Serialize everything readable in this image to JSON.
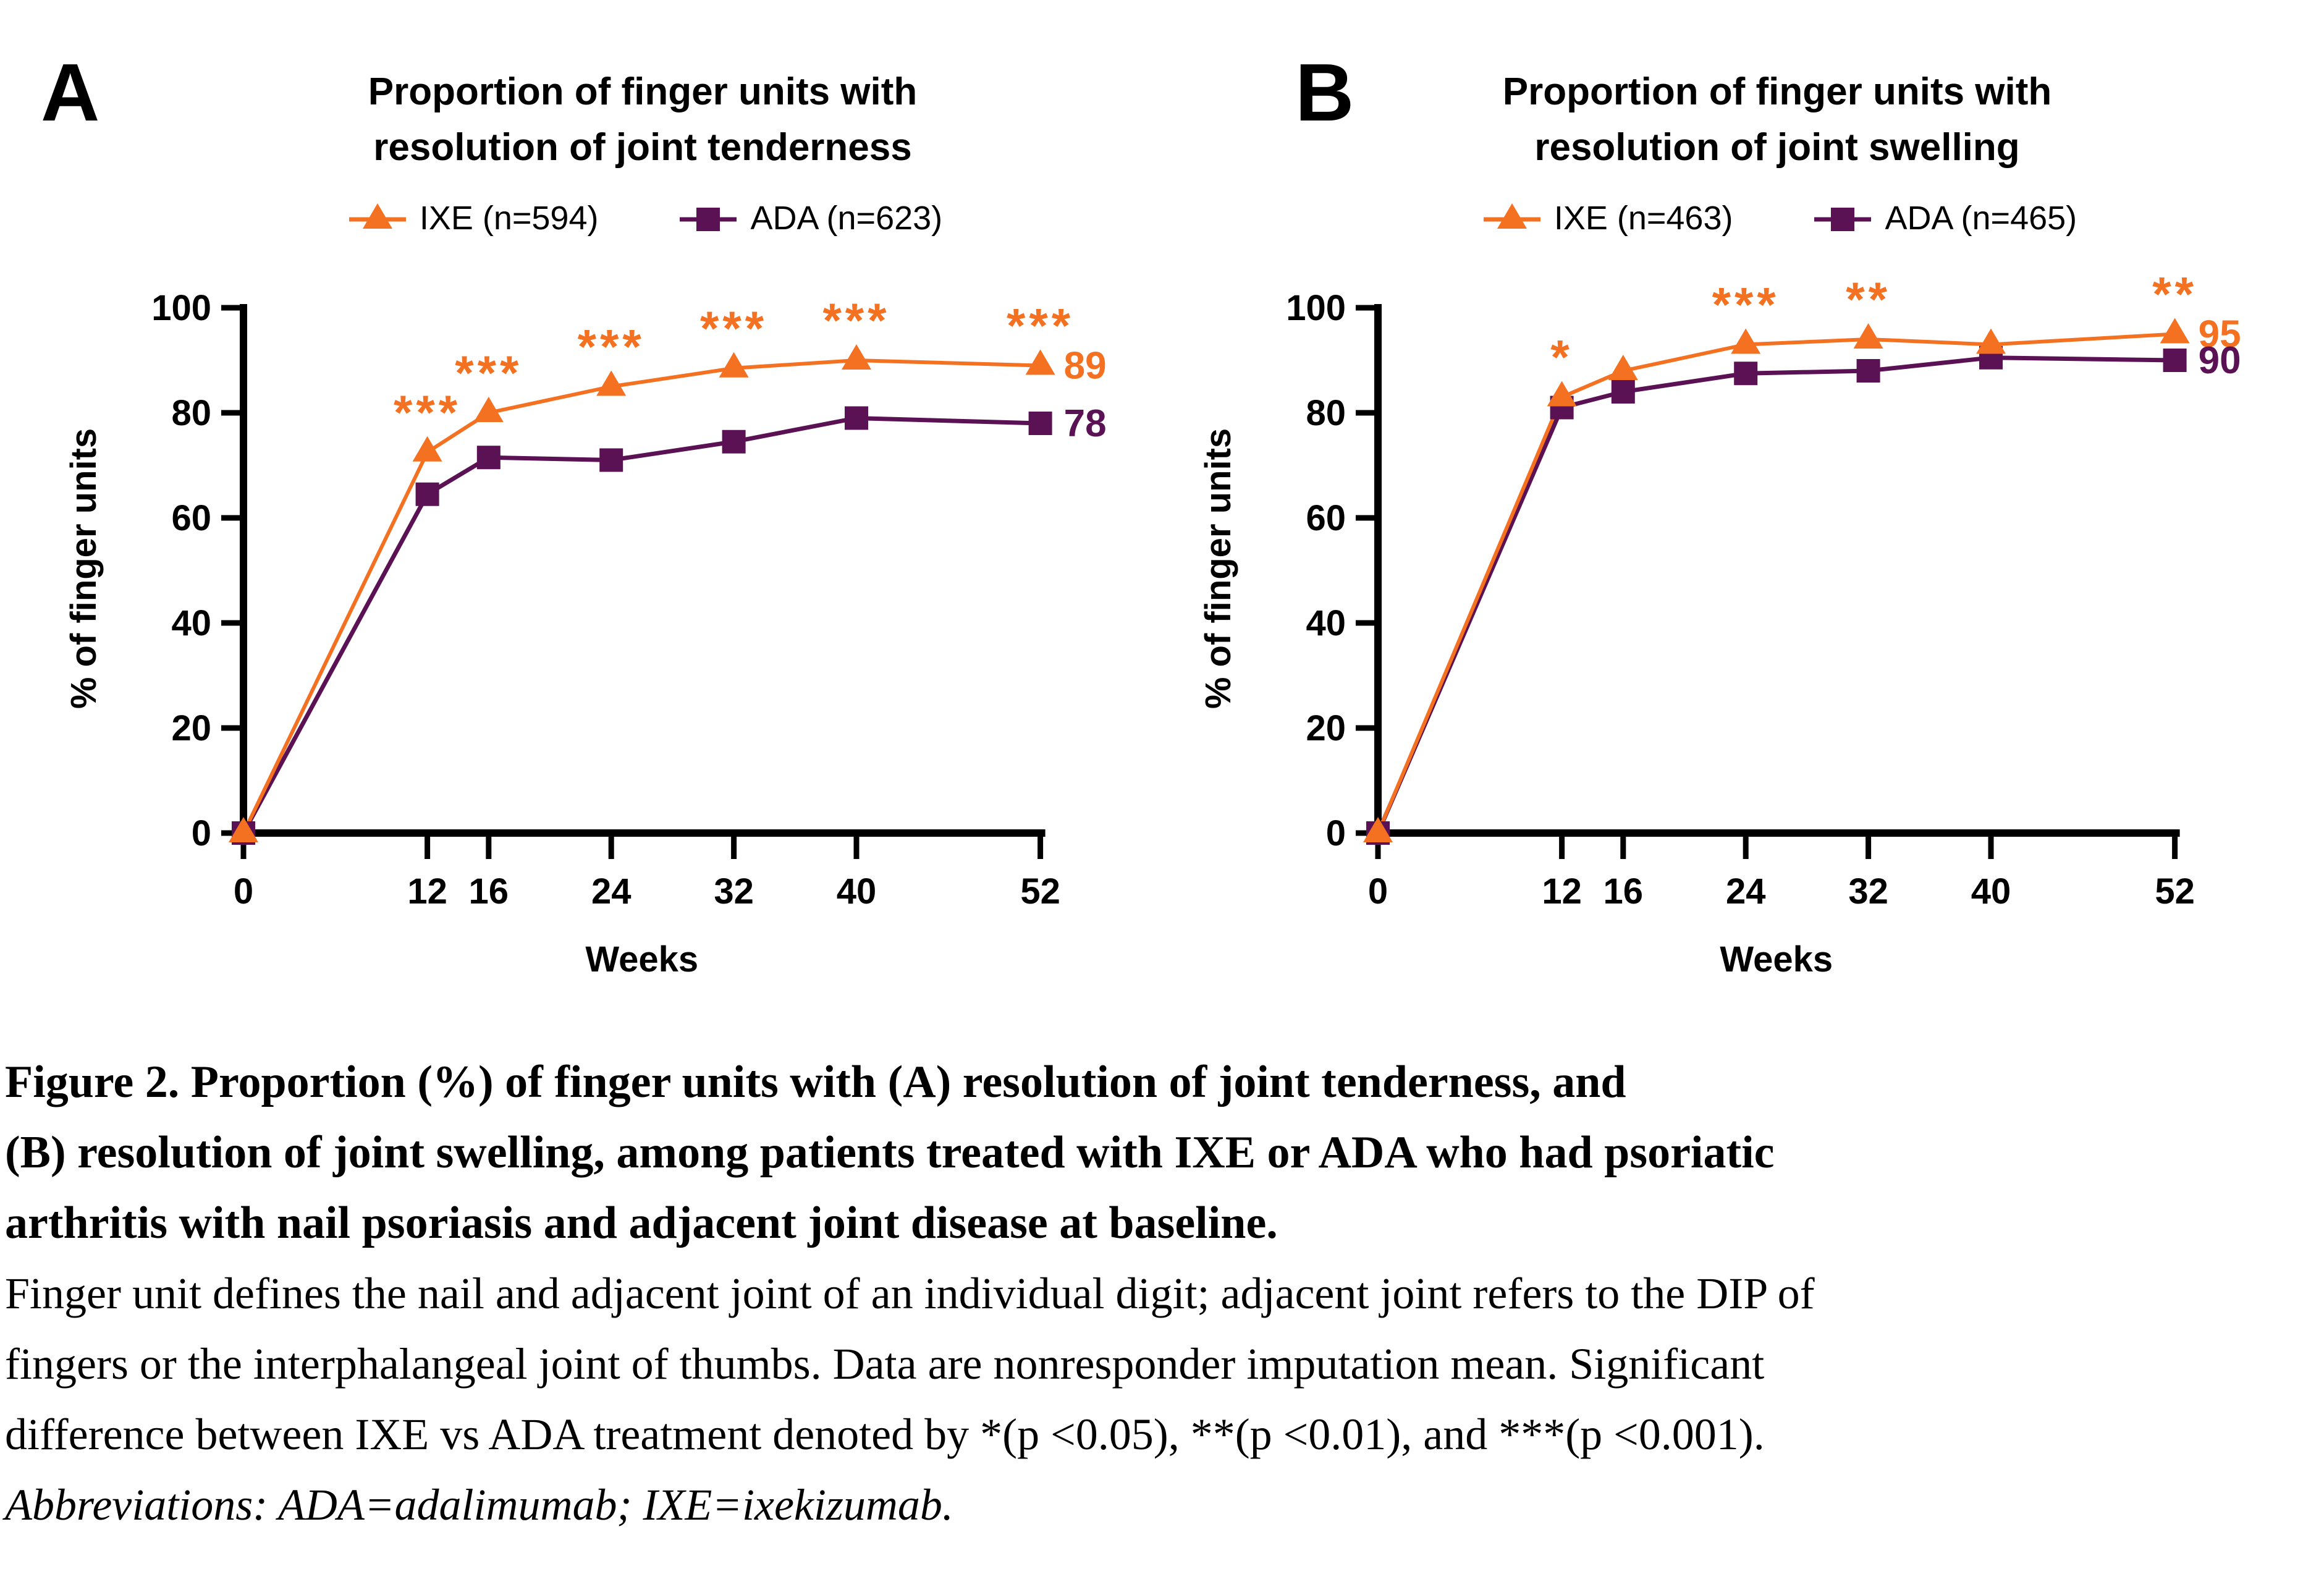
{
  "figure": {
    "panels": [
      {
        "letter": "A",
        "title_line1": "Proportion of finger units with",
        "title_line2": "resolution of joint tenderness",
        "legend": [
          {
            "label": "IXE (n=594)"
          },
          {
            "label": "ADA (n=623)"
          }
        ]
      },
      {
        "letter": "B",
        "title_line1": "Proportion of finger units with",
        "title_line2": "resolution of joint swelling",
        "legend": [
          {
            "label": "IXE (n=463)"
          },
          {
            "label": "ADA (n=465)"
          }
        ]
      }
    ],
    "caption": {
      "lines": [
        "Figure 2. Proportion (%) of finger units with (A) resolution of joint tenderness, and",
        "(B) resolution of joint swelling, among patients treated with IXE or ADA who had psoriatic",
        "arthritis with nail psoriasis and adjacent joint disease at baseline.",
        "Finger unit defines the nail and adjacent joint of an individual digit; adjacent joint refers to the DIP of",
        "fingers or the interphalangeal joint of thumbs. Data are nonresponder imputation mean. Significant",
        "difference between IXE vs ADA treatment denoted by *(p <0.05), **(p <0.01), and ***(p <0.001).",
        "Abbreviations: ADA=adalimumab; IXE=ixekizumab."
      ]
    },
    "colors": {
      "ixe_orange": "#F47121",
      "ada_purple": "#5A1254",
      "axis_black": "#000000"
    }
  },
  "chart_data": [
    {
      "type": "line",
      "title": "Proportion of finger units with resolution of joint tenderness",
      "x": [
        0,
        12,
        16,
        24,
        32,
        40,
        52
      ],
      "xticks": [
        0,
        12,
        16,
        24,
        32,
        40,
        52
      ],
      "yticks": [
        0,
        20,
        40,
        60,
        80,
        100
      ],
      "ylim": [
        0,
        100
      ],
      "xlabel": "Weeks",
      "ylabel": "% of finger units",
      "legend_position": "top",
      "grid": false,
      "series": [
        {
          "name": "IXE (n=594)",
          "marker": "triangle",
          "color": "#F47121",
          "values": [
            0,
            72.5,
            80,
            85,
            88.5,
            90,
            89
          ],
          "end_label": "89"
        },
        {
          "name": "ADA (n=623)",
          "marker": "square",
          "color": "#5A1254",
          "values": [
            0,
            64.5,
            71.5,
            71,
            74.5,
            79,
            78
          ],
          "end_label": "78"
        }
      ],
      "significance": [
        {
          "week": 12,
          "mark": "***"
        },
        {
          "week": 16,
          "mark": "***"
        },
        {
          "week": 24,
          "mark": "***"
        },
        {
          "week": 32,
          "mark": "***"
        },
        {
          "week": 40,
          "mark": "***"
        },
        {
          "week": 52,
          "mark": "***"
        }
      ]
    },
    {
      "type": "line",
      "title": "Proportion of finger units with resolution of joint swelling",
      "x": [
        0,
        12,
        16,
        24,
        32,
        40,
        52
      ],
      "xticks": [
        0,
        12,
        16,
        24,
        32,
        40,
        52
      ],
      "yticks": [
        0,
        20,
        40,
        60,
        80,
        100
      ],
      "ylim": [
        0,
        100
      ],
      "xlabel": "Weeks",
      "ylabel": "% of finger units",
      "legend_position": "top",
      "grid": false,
      "series": [
        {
          "name": "IXE (n=463)",
          "marker": "triangle",
          "color": "#F47121",
          "values": [
            0,
            83,
            88,
            93,
            94,
            93,
            95
          ],
          "end_label": "95"
        },
        {
          "name": "ADA (n=465)",
          "marker": "square",
          "color": "#5A1254",
          "values": [
            0,
            81,
            84,
            87.5,
            88,
            90.5,
            90
          ],
          "end_label": "90"
        }
      ],
      "significance": [
        {
          "week": 12,
          "mark": "*"
        },
        {
          "week": 24,
          "mark": "***"
        },
        {
          "week": 32,
          "mark": "**"
        },
        {
          "week": 52,
          "mark": "**"
        }
      ]
    }
  ]
}
